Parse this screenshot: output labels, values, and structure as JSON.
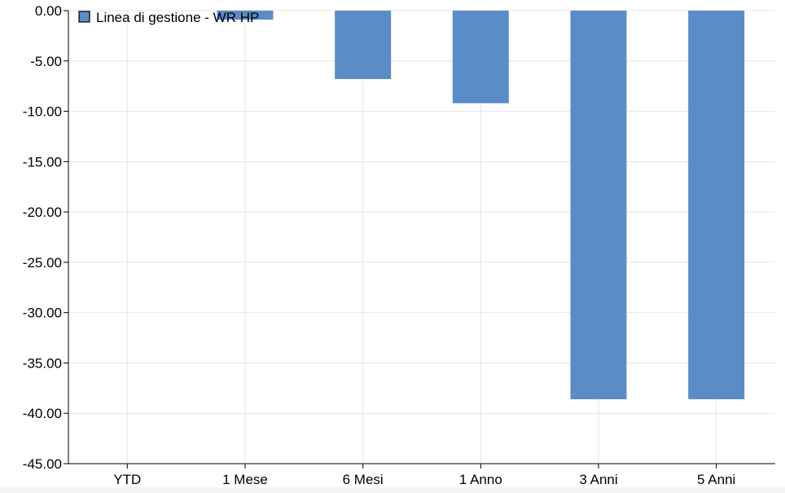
{
  "colors": {
    "bar": "#5a8cc7",
    "grid": "#e6e6e6",
    "axis": "#000000",
    "page_bottom": "#f5f5f5"
  },
  "legend": {
    "position": "top-left",
    "items": [
      {
        "label": "Linea di gestione - WR HP",
        "color": "#5a8cc7"
      }
    ]
  },
  "chart_data": {
    "type": "bar",
    "title": "",
    "xlabel": "",
    "ylabel": "",
    "categories": [
      "YTD",
      "1 Mese",
      "6 Mesi",
      "1 Anno",
      "3 Anni",
      "5 Anni"
    ],
    "series": [
      {
        "name": "Linea di gestione - WR HP",
        "values": [
          0,
          -0.9,
          -6.8,
          -9.2,
          -38.6,
          -38.6
        ]
      }
    ],
    "ylim": [
      -45,
      0
    ],
    "yticks": [
      0,
      -5,
      -10,
      -15,
      -20,
      -25,
      -30,
      -35,
      -40,
      -45
    ],
    "ytick_labels": [
      "0.00",
      "-5.00",
      "-10.00",
      "-15.00",
      "-20.00",
      "-25.00",
      "-30.00",
      "-35.00",
      "-40.00",
      "-45.00"
    ],
    "grid": true,
    "legend_position": "top-left"
  }
}
